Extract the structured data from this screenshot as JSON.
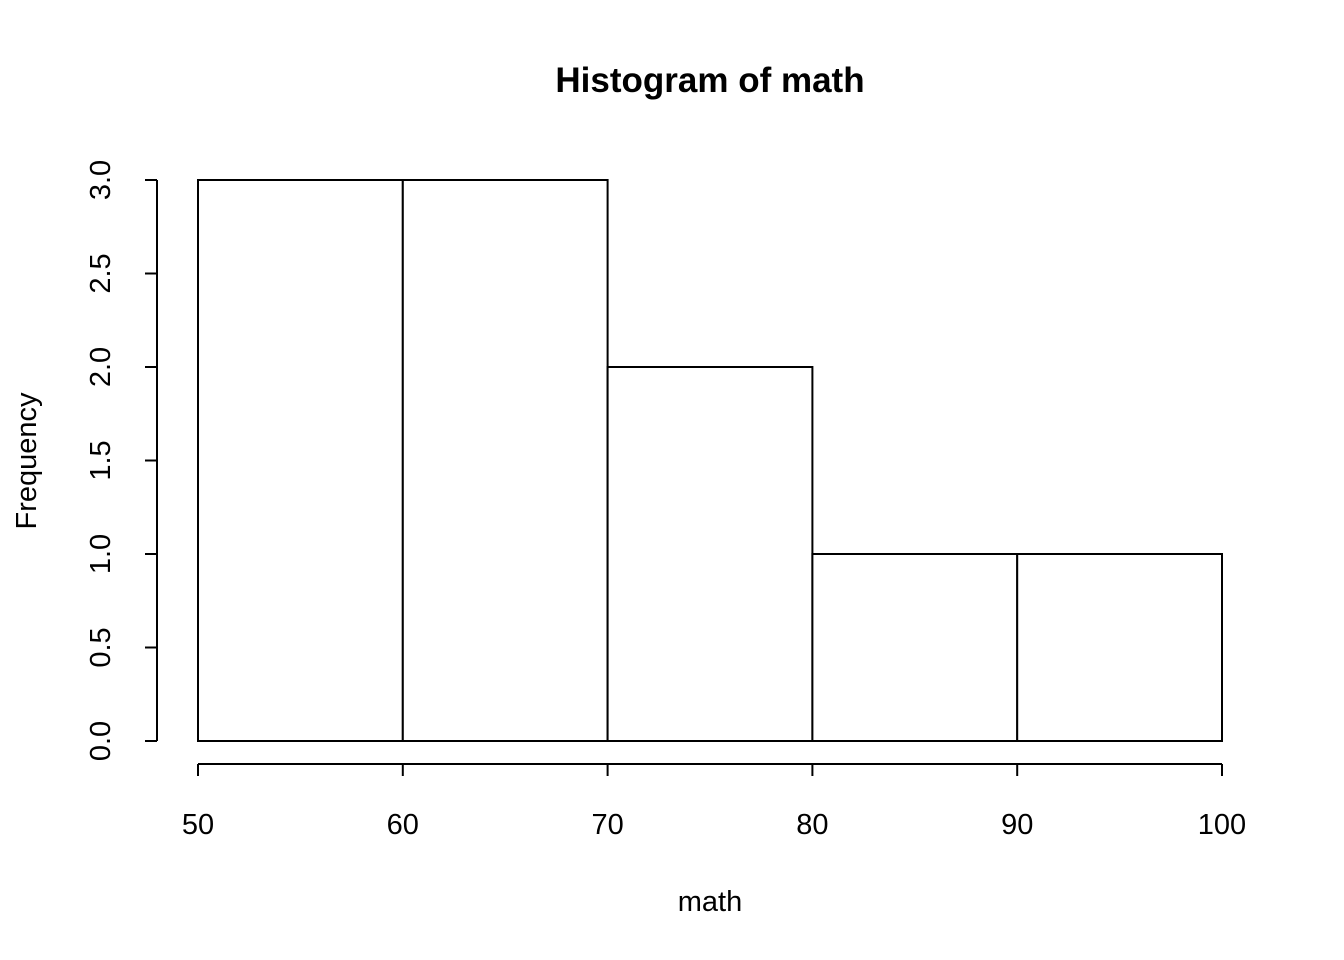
{
  "chart_data": {
    "type": "histogram",
    "title": "Histogram of math",
    "x_label": "math",
    "y_label": "Frequency",
    "bins": [
      50,
      60,
      70,
      80,
      90,
      100
    ],
    "values": [
      3,
      3,
      2,
      1,
      1
    ],
    "color": "#ffffff",
    "edge_color": "#000000",
    "xlim": [
      50,
      100
    ],
    "xticks": [
      50,
      60,
      70,
      80,
      90,
      100
    ],
    "ylim": [
      0,
      3
    ],
    "yticks": [
      {
        "value": 0,
        "label": "0.0"
      },
      {
        "value": 0.5,
        "label": "0.5"
      },
      {
        "value": 1,
        "label": "1.0"
      },
      {
        "value": 1.5,
        "label": "1.5"
      },
      {
        "value": 2,
        "label": "2.0"
      },
      {
        "value": 2.5,
        "label": "2.5"
      },
      {
        "value": 3,
        "label": "3.0"
      }
    ],
    "grid": false
  }
}
